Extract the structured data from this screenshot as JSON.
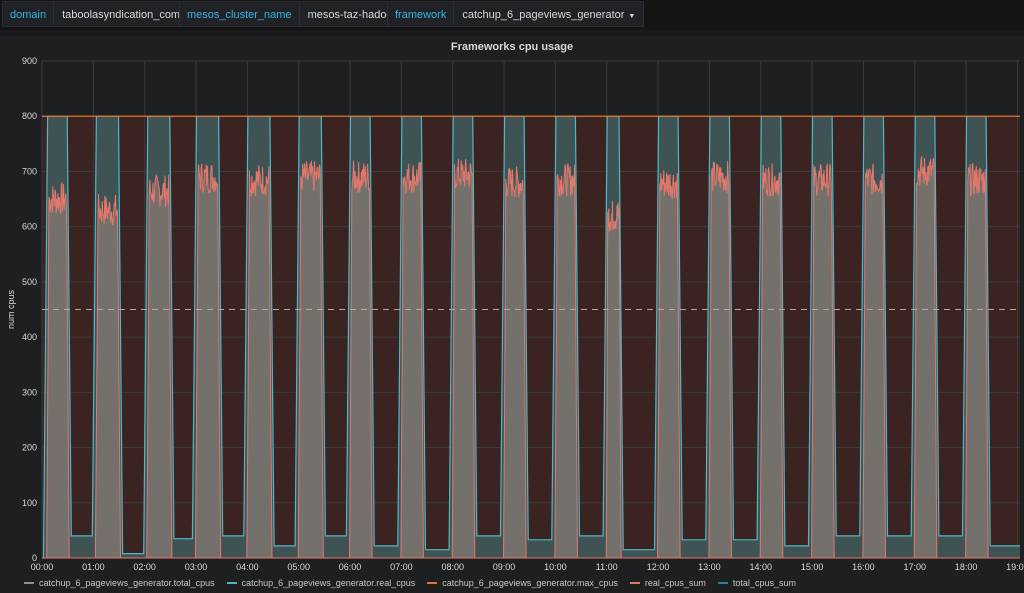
{
  "variables": [
    {
      "label": "domain",
      "value": "taboolasyndication_com"
    },
    {
      "label": "mesos_cluster_name",
      "value": "mesos-taz-hadoop"
    },
    {
      "label": "framework",
      "value": "catchup_6_pageviews_generator"
    }
  ],
  "colors": {
    "total_cpus": "#8f8f8f",
    "real_cpus": "#4fb8c8",
    "max_cpus": "#e0752d",
    "real_cpus_sum": "#e5776a",
    "total_cpus_sum": "#2d7f8c",
    "threshold": "#c9a0a0"
  },
  "chart_data": {
    "type": "area",
    "title": "Frameworks cpu usage",
    "ylabel": "num cpus",
    "xlabel": "",
    "ylim": [
      0,
      900
    ],
    "y_ticks": [
      0,
      100,
      200,
      300,
      400,
      500,
      600,
      700,
      800,
      900
    ],
    "x_ticks": [
      "00:00",
      "01:00",
      "02:00",
      "03:00",
      "04:00",
      "05:00",
      "06:00",
      "07:00",
      "08:00",
      "09:00",
      "10:00",
      "11:00",
      "12:00",
      "13:00",
      "14:00",
      "15:00",
      "16:00",
      "17:00",
      "18:00",
      "19:00"
    ],
    "xlim_hours": [
      0,
      19.05
    ],
    "threshold": 450,
    "max_cpus": 800,
    "jobs": [
      {
        "start": 0.05,
        "end": 0.55,
        "peak": 660,
        "idle_after": 40
      },
      {
        "start": 1.0,
        "end": 1.55,
        "peak": 640,
        "idle_after": 8
      },
      {
        "start": 2.0,
        "end": 2.55,
        "peak": 675,
        "idle_after": 35
      },
      {
        "start": 2.95,
        "end": 3.5,
        "peak": 700,
        "idle_after": 40
      },
      {
        "start": 3.95,
        "end": 4.5,
        "peak": 695,
        "idle_after": 22
      },
      {
        "start": 4.95,
        "end": 5.5,
        "peak": 700,
        "idle_after": 40
      },
      {
        "start": 5.95,
        "end": 6.45,
        "peak": 700,
        "idle_after": 22
      },
      {
        "start": 6.95,
        "end": 7.45,
        "peak": 700,
        "idle_after": 15
      },
      {
        "start": 7.95,
        "end": 8.45,
        "peak": 705,
        "idle_after": 40
      },
      {
        "start": 8.95,
        "end": 9.45,
        "peak": 690,
        "idle_after": 33
      },
      {
        "start": 9.95,
        "end": 10.45,
        "peak": 695,
        "idle_after": 40
      },
      {
        "start": 10.95,
        "end": 11.3,
        "peak": 630,
        "idle_after": 15
      },
      {
        "start": 11.95,
        "end": 12.45,
        "peak": 690,
        "idle_after": 33
      },
      {
        "start": 12.95,
        "end": 13.45,
        "peak": 700,
        "idle_after": 33
      },
      {
        "start": 13.95,
        "end": 14.45,
        "peak": 695,
        "idle_after": 22
      },
      {
        "start": 14.95,
        "end": 15.45,
        "peak": 695,
        "idle_after": 40
      },
      {
        "start": 15.95,
        "end": 16.45,
        "peak": 695,
        "idle_after": 40
      },
      {
        "start": 16.95,
        "end": 17.45,
        "peak": 710,
        "idle_after": 40
      },
      {
        "start": 17.95,
        "end": 18.45,
        "peak": 695,
        "idle_after": 22
      }
    ],
    "legend": [
      {
        "name": "catchup_6_pageviews_generator.total_cpus",
        "color_key": "total_cpus"
      },
      {
        "name": "catchup_6_pageviews_generator.real_cpus",
        "color_key": "real_cpus"
      },
      {
        "name": "catchup_6_pageviews_generator.max_cpus",
        "color_key": "max_cpus"
      },
      {
        "name": "real_cpus_sum",
        "color_key": "real_cpus_sum"
      },
      {
        "name": "total_cpus_sum",
        "color_key": "total_cpus_sum"
      }
    ]
  }
}
